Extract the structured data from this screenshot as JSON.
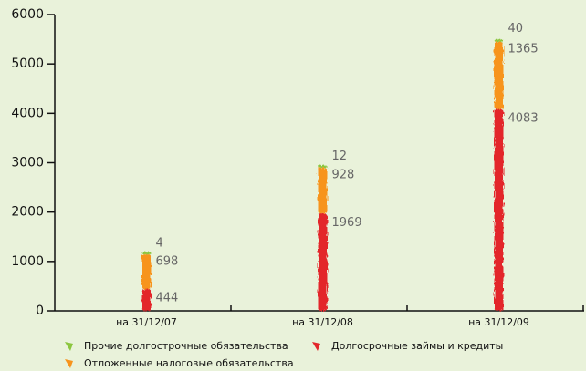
{
  "chart_data": {
    "type": "stacked-bar",
    "categories": [
      "на 31/12/07",
      "на 31/12/08",
      "на 31/12/09"
    ],
    "series": [
      {
        "name": "Долгосрочные займы и кредиты",
        "color": "#e3272b",
        "values": [
          444,
          1969,
          4083
        ]
      },
      {
        "name": "Отложенные налоговые обязательства",
        "color": "#f7941d",
        "values": [
          698,
          928,
          1365
        ]
      },
      {
        "name": "Прочие долгострочные обязательства",
        "color": "#8cc63f",
        "values": [
          4,
          12,
          40
        ]
      }
    ],
    "ylim": [
      0,
      6000
    ],
    "yticks": [
      0,
      1000,
      2000,
      3000,
      4000,
      5000,
      6000
    ]
  }
}
